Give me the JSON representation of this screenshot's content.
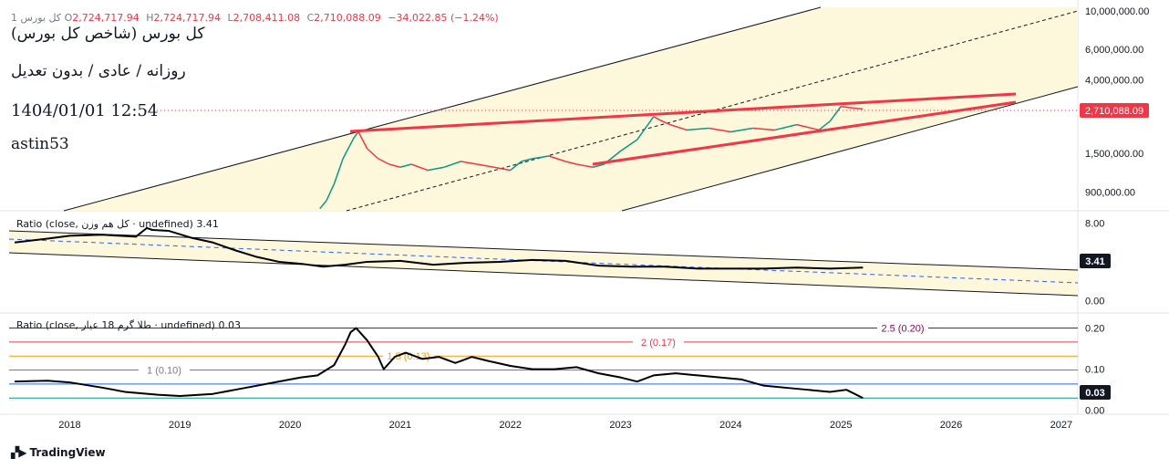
{
  "header": {
    "symbol_label": "1 کل بورس",
    "open_label": "O",
    "open": "2,724,717.94",
    "high_label": "H",
    "high": "2,724,717.94",
    "low_label": "L",
    "low": "2,708,411.08",
    "close_label": "C",
    "close": "2,710,088.09",
    "change": "−34,022.85 (−1.24%)"
  },
  "overlay_text": {
    "title": "کل بورس (شاخص کل بورس)",
    "subtitle": "روزانه / عادی / بدون تعدیل",
    "datetime": "1404/01/01 12:54",
    "author": "astin53"
  },
  "colors": {
    "up": "#089981",
    "down": "#f23645",
    "channel_fill": "#fdf7dc",
    "trendline": "#f23645",
    "price_badge": "#f23645",
    "dashed_mid": "#2962ff"
  },
  "chart_data": [
    {
      "type": "line",
      "name": "main-price",
      "scale": "log",
      "ylim": [
        700000,
        11000000
      ],
      "y_ticks": [
        "10,000,000.00",
        "6,000,000.00",
        "4,000,000.00",
        "1,500,000.00",
        "900,000.00"
      ],
      "y_tick_values": [
        10000000,
        6000000,
        4000000,
        1500000,
        900000
      ],
      "last_value_label": "2,710,088.09",
      "last_value": 2710088.09,
      "x": [
        2020.27,
        2020.33,
        2020.4,
        2020.48,
        2020.58,
        2020.62,
        2020.7,
        2020.8,
        2020.9,
        2021.0,
        2021.1,
        2021.25,
        2021.4,
        2021.55,
        2021.7,
        2021.85,
        2022.0,
        2022.1,
        2022.2,
        2022.35,
        2022.5,
        2022.6,
        2022.75,
        2022.85,
        2023.0,
        2023.15,
        2023.3,
        2023.35,
        2023.45,
        2023.6,
        2023.8,
        2024.0,
        2024.2,
        2024.4,
        2024.6,
        2024.8,
        2024.9,
        2025.0,
        2025.1,
        2025.2
      ],
      "values": [
        720000,
        800000,
        1000000,
        1400000,
        1850000,
        2000000,
        1600000,
        1400000,
        1300000,
        1250000,
        1300000,
        1200000,
        1250000,
        1350000,
        1300000,
        1250000,
        1200000,
        1350000,
        1400000,
        1450000,
        1350000,
        1300000,
        1250000,
        1300000,
        1550000,
        1800000,
        2450000,
        2350000,
        2200000,
        2050000,
        2100000,
        2000000,
        2100000,
        2050000,
        2200000,
        2050000,
        2300000,
        2800000,
        2750000,
        2710088
      ]
    },
    {
      "type": "line",
      "name": "ratio-1",
      "legend": "Ratio (close, کل هم وزن · undefined)",
      "value_label": "3.41",
      "last_value": 3.41,
      "ylim": [
        -1.2,
        9
      ],
      "y_ticks": [
        "8.00",
        "0.00"
      ],
      "y_tick_values": [
        8,
        0
      ],
      "x": [
        2017.5,
        2017.8,
        2018.0,
        2018.3,
        2018.6,
        2018.7,
        2018.75,
        2018.9,
        2019.1,
        2019.3,
        2019.5,
        2019.7,
        2019.9,
        2020.1,
        2020.3,
        2020.5,
        2020.7,
        2021.0,
        2021.3,
        2021.6,
        2021.9,
        2022.2,
        2022.5,
        2022.8,
        2023.1,
        2023.4,
        2023.7,
        2024.0,
        2024.3,
        2024.6,
        2024.9,
        2025.2
      ],
      "values": [
        6.0,
        6.4,
        6.7,
        6.8,
        6.6,
        7.5,
        7.3,
        7.2,
        6.5,
        6.0,
        5.2,
        4.5,
        4.0,
        3.8,
        3.5,
        3.7,
        4.0,
        4.1,
        3.7,
        3.9,
        4.0,
        4.2,
        4.1,
        3.6,
        3.5,
        3.5,
        3.3,
        3.3,
        3.3,
        3.4,
        3.3,
        3.41
      ]
    },
    {
      "type": "line",
      "name": "ratio-2",
      "legend": "Ratio (close, طلا گرم 18 عیار · undefined)",
      "value_label": "0.03",
      "last_value": 0.03,
      "ylim": [
        -0.005,
        0.23
      ],
      "y_ticks": [
        "0.20",
        "0.10",
        "0.00"
      ],
      "y_tick_values": [
        0.2,
        0.1,
        0.0
      ],
      "levels": [
        {
          "label": "2.5 (0.20)",
          "value": 0.2,
          "color": "#880e4f"
        },
        {
          "label": "2 (0.17)",
          "value": 0.166,
          "color": "#f23645"
        },
        {
          "label": "1.5 (0.13)",
          "value": 0.132,
          "color": "#ff9800"
        },
        {
          "label": "1 (0.10)",
          "value": 0.098,
          "color": "#787b86"
        },
        {
          "label": "",
          "value": 0.064,
          "color": "#2962ff"
        },
        {
          "label": "",
          "value": 0.03,
          "color": "#089981"
        }
      ],
      "x": [
        2017.5,
        2017.8,
        2018.0,
        2018.3,
        2018.5,
        2018.8,
        2019.0,
        2019.3,
        2019.5,
        2019.7,
        2019.9,
        2020.1,
        2020.25,
        2020.4,
        2020.5,
        2020.55,
        2020.6,
        2020.7,
        2020.8,
        2020.85,
        2020.95,
        2021.05,
        2021.2,
        2021.35,
        2021.5,
        2021.65,
        2021.8,
        2022.0,
        2022.2,
        2022.4,
        2022.6,
        2022.8,
        2023.0,
        2023.15,
        2023.3,
        2023.5,
        2023.7,
        2023.9,
        2024.1,
        2024.3,
        2024.5,
        2024.7,
        2024.9,
        2025.05,
        2025.2
      ],
      "values": [
        0.07,
        0.072,
        0.068,
        0.055,
        0.045,
        0.038,
        0.035,
        0.04,
        0.05,
        0.06,
        0.07,
        0.08,
        0.085,
        0.11,
        0.16,
        0.19,
        0.2,
        0.17,
        0.13,
        0.1,
        0.13,
        0.14,
        0.125,
        0.13,
        0.115,
        0.13,
        0.12,
        0.108,
        0.1,
        0.1,
        0.105,
        0.09,
        0.08,
        0.07,
        0.085,
        0.09,
        0.085,
        0.08,
        0.075,
        0.06,
        0.055,
        0.05,
        0.045,
        0.05,
        0.03
      ]
    }
  ],
  "x_axis": {
    "tick_labels": [
      "2018",
      "2019",
      "2020",
      "2021",
      "2022",
      "2023",
      "2024",
      "2025",
      "2026",
      "2027"
    ],
    "tick_values": [
      2018,
      2019,
      2020,
      2021,
      2022,
      2023,
      2024,
      2025,
      2026,
      2027
    ],
    "range": [
      2017.45,
      2027.15
    ]
  },
  "footer": {
    "brand": "TradingView"
  }
}
